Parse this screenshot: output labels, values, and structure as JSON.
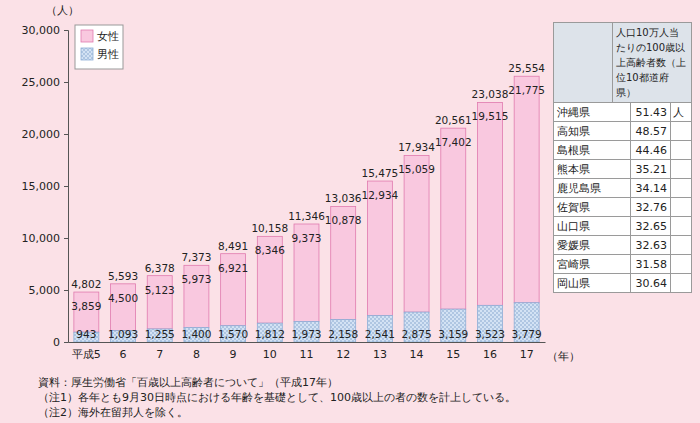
{
  "chart_data": {
    "type": "bar",
    "stacked": true,
    "data_labels": true,
    "legend": "top-left",
    "grid": false,
    "y_unit_label": "（人）",
    "x_unit_label": "（年）",
    "categories": [
      "平成5",
      "6",
      "7",
      "8",
      "9",
      "10",
      "11",
      "12",
      "13",
      "14",
      "15",
      "16",
      "17"
    ],
    "series": [
      {
        "name": "女性",
        "color": "#f9c8df",
        "values": [
          3859,
          4500,
          5123,
          5973,
          6921,
          8346,
          9373,
          10878,
          12934,
          15059,
          17402,
          19515,
          21775
        ],
        "value_labels": [
          "3,859",
          "4,500",
          "5,123",
          "5,973",
          "6,921",
          "8,346",
          "9,373",
          "10,878",
          "12,934",
          "15,059",
          "17,402",
          "19,515",
          "21,775"
        ]
      },
      {
        "name": "男性",
        "color": "#d3e2f4",
        "values": [
          943,
          1093,
          1255,
          1400,
          1570,
          1812,
          1973,
          2158,
          2541,
          2875,
          3159,
          3523,
          3779
        ],
        "value_labels": [
          "943",
          "1,093",
          "1,255",
          "1,400",
          "1,570",
          "1,812",
          "1,973",
          "2,158",
          "2,541",
          "2,875",
          "3,159",
          "3,523",
          "3,779"
        ]
      }
    ],
    "totals": {
      "values": [
        4802,
        5593,
        6378,
        7373,
        8491,
        10158,
        11346,
        13036,
        15475,
        17934,
        20561,
        23038,
        25554
      ],
      "value_labels": [
        "4,802",
        "5,593",
        "6,378",
        "7,373",
        "8,491",
        "10,158",
        "11,346",
        "13,036",
        "15,475",
        "17,934",
        "20,561",
        "23,038",
        "25,554"
      ]
    },
    "ylim": [
      0,
      30000
    ],
    "yticks": [
      0,
      {
        "value": 5000,
        "label": "5,000"
      },
      {
        "value": 10000,
        "label": "10,000"
      },
      {
        "value": 15000,
        "label": "15,000"
      },
      {
        "value": 20000,
        "label": "20,000"
      },
      {
        "value": 25000,
        "label": "25,000"
      },
      {
        "value": 30000,
        "label": "30,000"
      }
    ]
  },
  "side_table": {
    "header": "人口10万人当たりの100歳以上高齢者数（上位10都道府県）",
    "unit": "人",
    "rows": [
      [
        "沖縄県",
        51.43
      ],
      [
        "高知県",
        48.57
      ],
      [
        "島根県",
        44.46
      ],
      [
        "熊本県",
        35.21
      ],
      [
        "鹿児島県",
        34.14
      ],
      [
        "佐賀県",
        32.76
      ],
      [
        "山口県",
        32.65
      ],
      [
        "愛媛県",
        32.63
      ],
      [
        "宮崎県",
        31.58
      ],
      [
        "岡山県",
        30.64
      ]
    ]
  },
  "source_notes": [
    "資料：厚生労働省「百歳以上高齢者について」（平成17年）",
    "（注1）各年とも9月30日時点における年齢を基礎として、100歳以上の者の数を計上している。",
    "（注2）海外在留邦人を除く。"
  ]
}
